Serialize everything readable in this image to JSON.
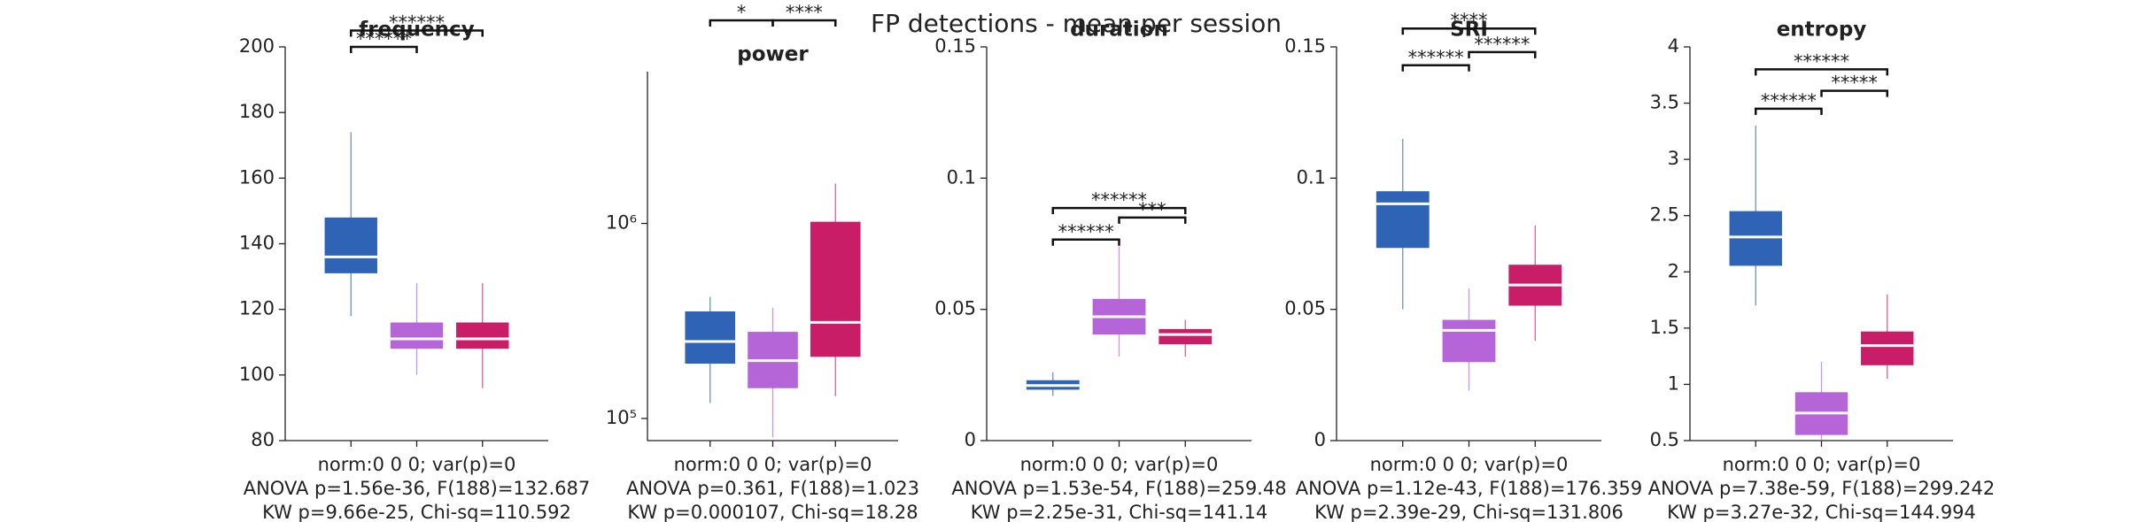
{
  "title": "FP detections - mean per session",
  "chart_data": [
    {
      "type": "box",
      "title": "frequency",
      "categories": [
        null,
        null,
        null
      ],
      "xlabel": [
        "norm:0  0  0; var(p)=0",
        "ANOVA p=1.56e-36, F(188)=132.687",
        "KW p=9.66e-25, Chi-sq=110.592"
      ],
      "ylim": [
        80,
        200
      ],
      "yticks": [
        80,
        100,
        120,
        140,
        160,
        180,
        200
      ],
      "boxes": [
        {
          "color": "#2f63b5",
          "whislo": 118,
          "q1": 131,
          "med": 136,
          "q3": 148,
          "whishi": 174
        },
        {
          "color": "#b565d8",
          "whislo": 100,
          "q1": 108,
          "med": 111,
          "q3": 116,
          "whishi": 128
        },
        {
          "color": "#c91d68",
          "whislo": 96,
          "q1": 108,
          "med": 111,
          "q3": 116,
          "whishi": 128
        }
      ],
      "annotations": [
        {
          "from": 0,
          "to": 1,
          "y": 200,
          "label": "******"
        },
        {
          "from": 0,
          "to": 2,
          "y": 205,
          "label": "******"
        }
      ]
    },
    {
      "type": "box",
      "title": "power",
      "categories": [
        null,
        null,
        null
      ],
      "log_scale": true,
      "xlabel": [
        "norm:0  0  0; var(p)=0",
        "ANOVA p=0.361, F(188)=1.023",
        "KW p=0.000107, Chi-sq=18.28"
      ],
      "ylim": [
        77000,
        6000000
      ],
      "yticks": [
        {
          "value": 100000,
          "label": "10⁵"
        },
        {
          "value": 1000000,
          "label": "10⁶"
        }
      ],
      "boxes": [
        {
          "color": "#2f63b5",
          "whislo": 120000,
          "q1": 191000,
          "med": 248000,
          "q3": 354000,
          "whishi": 420000
        },
        {
          "color": "#b565d8",
          "whislo": 80000,
          "q1": 143000,
          "med": 198000,
          "q3": 278000,
          "whishi": 370000
        },
        {
          "color": "#c91d68",
          "whislo": 130000,
          "q1": 207000,
          "med": 311000,
          "q3": 1020000,
          "whishi": 1600000
        }
      ],
      "annotations": [
        {
          "from": 0,
          "to": 1,
          "y": 11000000,
          "label": "*"
        },
        {
          "from": 1,
          "to": 2,
          "y": 11000000,
          "label": "****"
        }
      ]
    },
    {
      "type": "box",
      "title": "duration",
      "categories": [
        null,
        null,
        null
      ],
      "xlabel": [
        "norm:0  0  0; var(p)=0",
        "ANOVA p=1.53e-54, F(188)=259.48",
        "KW p=2.25e-31, Chi-sq=141.14"
      ],
      "ylim": [
        0,
        0.15
      ],
      "yticks": [
        0,
        0.05,
        0.1,
        0.15
      ],
      "boxes": [
        {
          "color": "#2f63b5",
          "whislo": 0.017,
          "q1": 0.0194,
          "med": 0.021,
          "q3": 0.023,
          "whishi": 0.026
        },
        {
          "color": "#b565d8",
          "whislo": 0.032,
          "q1": 0.0404,
          "med": 0.0472,
          "q3": 0.054,
          "whishi": 0.074
        },
        {
          "color": "#c91d68",
          "whislo": 0.032,
          "q1": 0.0367,
          "med": 0.0404,
          "q3": 0.0425,
          "whishi": 0.046
        }
      ],
      "annotations": [
        {
          "from": 0,
          "to": 1,
          "y": 0.0766,
          "label": "******"
        },
        {
          "from": 1,
          "to": 2,
          "y": 0.085,
          "label": "***"
        },
        {
          "from": 0,
          "to": 2,
          "y": 0.0886,
          "label": "******"
        }
      ]
    },
    {
      "type": "box",
      "title": "SRI",
      "categories": [
        null,
        null,
        null
      ],
      "xlabel": [
        "norm:0  0  0; var(p)=0",
        "ANOVA p=1.12e-43, F(188)=176.359",
        "KW p=2.39e-29, Chi-sq=131.806"
      ],
      "ylim": [
        0,
        0.15
      ],
      "yticks": [
        0,
        0.05,
        0.1,
        0.15
      ],
      "boxes": [
        {
          "color": "#2f63b5",
          "whislo": 0.05,
          "q1": 0.0734,
          "med": 0.0902,
          "q3": 0.095,
          "whishi": 0.115
        },
        {
          "color": "#b565d8",
          "whislo": 0.019,
          "q1": 0.0299,
          "med": 0.042,
          "q3": 0.046,
          "whishi": 0.058
        },
        {
          "color": "#c91d68",
          "whislo": 0.038,
          "q1": 0.0514,
          "med": 0.0593,
          "q3": 0.067,
          "whishi": 0.082
        }
      ],
      "annotations": [
        {
          "from": 0,
          "to": 1,
          "y": 0.143,
          "label": "******"
        },
        {
          "from": 1,
          "to": 2,
          "y": 0.148,
          "label": "******"
        },
        {
          "from": 0,
          "to": 2,
          "y": 0.157,
          "label": "****"
        }
      ]
    },
    {
      "type": "box",
      "title": "entropy",
      "categories": [
        null,
        null,
        null
      ],
      "xlabel": [
        "norm:0  0  0; var(p)=0",
        "ANOVA p=7.38e-59, F(188)=299.242",
        "KW p=3.27e-32, Chi-sq=144.994"
      ],
      "ylim": [
        0.5,
        4
      ],
      "yticks": [
        0.5,
        1,
        1.5,
        2,
        2.5,
        3,
        3.5,
        4
      ],
      "boxes": [
        {
          "color": "#2f63b5",
          "whislo": 1.7,
          "q1": 2.054,
          "med": 2.31,
          "q3": 2.54,
          "whishi": 3.3
        },
        {
          "color": "#b565d8",
          "whislo": 0.5,
          "q1": 0.55,
          "med": 0.745,
          "q3": 0.93,
          "whishi": 1.2
        },
        {
          "color": "#c91d68",
          "whislo": 1.05,
          "q1": 1.17,
          "med": 1.345,
          "q3": 1.47,
          "whishi": 1.8
        }
      ],
      "annotations": [
        {
          "from": 0,
          "to": 1,
          "y": 3.45,
          "label": "******"
        },
        {
          "from": 1,
          "to": 2,
          "y": 3.61,
          "label": "*****"
        },
        {
          "from": 0,
          "to": 2,
          "y": 3.8,
          "label": "******"
        }
      ]
    }
  ]
}
